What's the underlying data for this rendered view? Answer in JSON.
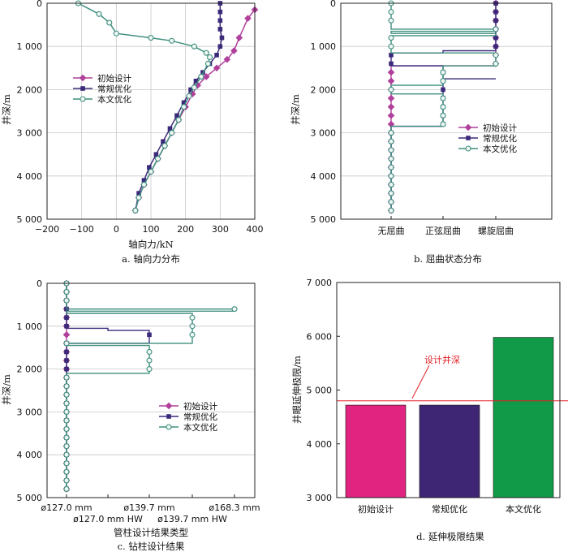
{
  "colors": {
    "initial": "#b0409b",
    "conventional": "#3b2a7a",
    "proposed": "#3f8f7e",
    "bar_initial": "#e0247f",
    "bar_conventional": "#3f2674",
    "bar_proposed": "#119b48",
    "design_line": "#e31f26",
    "grid": "#c8c8c8"
  },
  "chart_data": [
    {
      "id": "a",
      "type": "line",
      "caption": "a. 轴向力分布",
      "xlabel": "轴向力/kN",
      "ylabel": "井深/m",
      "xlim": [
        -200,
        400
      ],
      "ylim": [
        5000,
        0
      ],
      "xticks": [
        -200,
        -100,
        0,
        100,
        200,
        300,
        400
      ],
      "xtick_labels": [
        "−200",
        "−100",
        "0",
        "100",
        "200",
        "300",
        "400"
      ],
      "yticks": [
        0,
        1000,
        2000,
        3000,
        4000,
        5000
      ],
      "ytick_labels": [
        "0",
        "1 000",
        "2 000",
        "3 000",
        "4 000",
        "5 000"
      ],
      "legend": [
        "初始设计",
        "常规优化",
        "本文优化"
      ],
      "series": [
        {
          "name": "初始设计",
          "x": [
            400,
            380,
            355,
            340,
            320,
            290,
            260,
            235,
            220,
            200,
            180,
            160,
            140,
            120,
            100,
            80,
            65,
            55
          ],
          "y": [
            150,
            350,
            800,
            1100,
            1300,
            1500,
            1700,
            1900,
            2100,
            2400,
            2700,
            3000,
            3300,
            3600,
            3900,
            4200,
            4500,
            4800
          ]
        },
        {
          "name": "常规优化",
          "x": [
            300,
            300,
            300,
            300,
            305,
            300,
            290,
            270,
            250,
            230,
            215,
            195,
            175,
            155,
            135,
            115,
            95,
            80,
            65,
            55
          ],
          "y": [
            0,
            200,
            400,
            600,
            800,
            1000,
            1200,
            1400,
            1600,
            1800,
            2000,
            2300,
            2600,
            2900,
            3200,
            3500,
            3800,
            4100,
            4400,
            4800
          ]
        },
        {
          "name": "本文优化",
          "x": [
            -110,
            -50,
            -20,
            0,
            100,
            160,
            225,
            260,
            270,
            265,
            245,
            225,
            210,
            195,
            180,
            160,
            140,
            120,
            100,
            80,
            65,
            55
          ],
          "y": [
            0,
            250,
            450,
            700,
            800,
            870,
            1000,
            1150,
            1250,
            1400,
            1700,
            1950,
            2150,
            2400,
            2700,
            3000,
            3300,
            3600,
            3900,
            4200,
            4500,
            4800
          ]
        }
      ]
    },
    {
      "id": "b",
      "type": "line",
      "caption": "b. 屈曲状态分布",
      "ylabel": "井深/m",
      "categories": [
        "无屈曲",
        "正弦屈曲",
        "螺旋屈曲"
      ],
      "ylim": [
        5000,
        0
      ],
      "yticks": [
        0,
        1000,
        2000,
        3000,
        4000,
        5000
      ],
      "ytick_labels": [
        "0",
        "1 000",
        "2 000",
        "3 000",
        "4 000",
        "5 000"
      ],
      "legend": [
        "初始设计",
        "常规优化",
        "本文优化"
      ],
      "series": [
        {
          "name": "初始设计",
          "steps": [
            [
              0,
              2
            ],
            [
              1450,
              2
            ],
            [
              1450,
              0
            ],
            [
              4800,
              0
            ]
          ]
        },
        {
          "name": "常规优化",
          "steps": [
            [
              0,
              2
            ],
            [
              1100,
              2
            ],
            [
              1100,
              1
            ],
            [
              1150,
              1
            ],
            [
              1150,
              0
            ],
            [
              1450,
              0
            ],
            [
              1450,
              1
            ],
            [
              1750,
              1
            ],
            [
              1750,
              2
            ],
            [
              1750,
              1
            ],
            [
              2850,
              1
            ],
            [
              2850,
              0
            ],
            [
              4800,
              0
            ]
          ]
        },
        {
          "name": "本文优化",
          "steps": [
            [
              0,
              0
            ],
            [
              600,
              0
            ],
            [
              600,
              2
            ],
            [
              650,
              2
            ],
            [
              650,
              0
            ],
            [
              700,
              0
            ],
            [
              700,
              2
            ],
            [
              750,
              2
            ],
            [
              750,
              0
            ],
            [
              1150,
              0
            ],
            [
              1150,
              2
            ],
            [
              1450,
              2
            ],
            [
              1450,
              1
            ],
            [
              1900,
              1
            ],
            [
              1900,
              0
            ],
            [
              2100,
              0
            ],
            [
              2100,
              1
            ],
            [
              2850,
              1
            ],
            [
              2850,
              0
            ],
            [
              4800,
              0
            ]
          ]
        }
      ]
    },
    {
      "id": "c",
      "type": "line",
      "caption": "c. 钻柱设计结果",
      "xlabel": "管柱设计结果类型",
      "ylabel": "井深/m",
      "categories_top": [
        "ø127.0 mm",
        "ø139.7 mm",
        "ø168.3 mm"
      ],
      "categories_bottom": [
        "ø127.0 mm HW",
        "ø139.7 mm HW"
      ],
      "category_order": [
        "ø127.0 mm",
        "ø127.0 mm HW",
        "ø139.7 mm",
        "ø139.7 mm HW",
        "ø168.3 mm"
      ],
      "ylim": [
        5000,
        0
      ],
      "yticks": [
        0,
        1000,
        2000,
        3000,
        4000,
        5000
      ],
      "ytick_labels": [
        "0",
        "1 000",
        "2 000",
        "3 000",
        "4 000",
        "5 000"
      ],
      "legend": [
        "初始设计",
        "常规优化",
        "本文优化"
      ],
      "series": [
        {
          "name": "初始设计",
          "steps": [
            [
              0,
              0
            ],
            [
              4800,
              0
            ]
          ]
        },
        {
          "name": "常规优化",
          "steps": [
            [
              0,
              0
            ],
            [
              1050,
              0
            ],
            [
              1050,
              1
            ],
            [
              1100,
              1
            ],
            [
              1100,
              2
            ],
            [
              1400,
              2
            ],
            [
              1400,
              0
            ],
            [
              4800,
              0
            ]
          ]
        },
        {
          "name": "本文优化",
          "steps": [
            [
              0,
              0
            ],
            [
              600,
              0
            ],
            [
              600,
              4
            ],
            [
              650,
              4
            ],
            [
              650,
              0
            ],
            [
              700,
              0
            ],
            [
              700,
              3
            ],
            [
              1400,
              3
            ],
            [
              1400,
              0
            ],
            [
              1450,
              0
            ],
            [
              1450,
              2
            ],
            [
              2100,
              2
            ],
            [
              2100,
              0
            ],
            [
              4800,
              0
            ]
          ]
        }
      ]
    },
    {
      "id": "d",
      "type": "bar",
      "caption": "d. 延伸极限结果",
      "ylabel": "井眼延伸极限/m",
      "categories": [
        "初始设计",
        "常规优化",
        "本文优化"
      ],
      "values": [
        4720,
        4720,
        5980
      ],
      "ylim": [
        3000,
        7000
      ],
      "yticks": [
        3000,
        4000,
        5000,
        6000,
        7000
      ],
      "ytick_labels": [
        "3 000",
        "4 000",
        "5 000",
        "6 000",
        "7 000"
      ],
      "reference_line": {
        "label": "设计井深",
        "value": 4800
      }
    }
  ]
}
